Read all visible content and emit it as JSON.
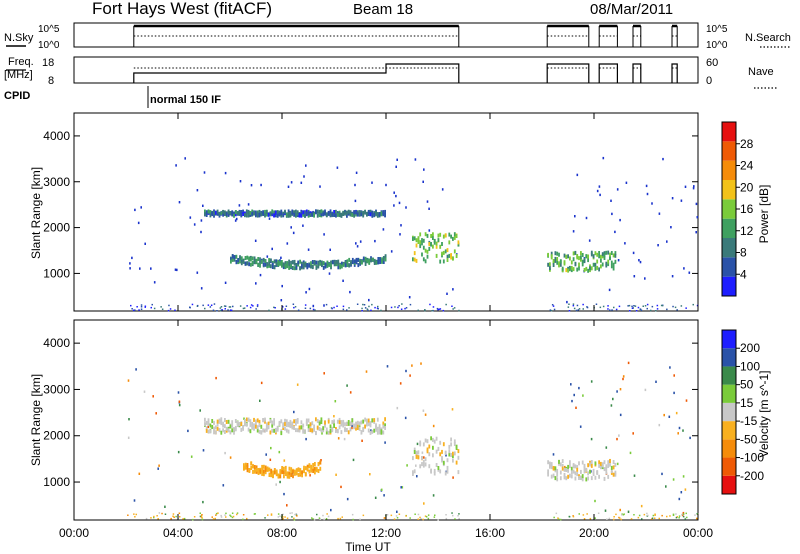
{
  "header": {
    "station": "Fort Hays West (fitACF)",
    "beam": "Beam 18",
    "date": "08/Mar/2011"
  },
  "strip_labels": {
    "nsky": "N.Sky",
    "nsearch": "N.Search",
    "freq_line1": "Freq.",
    "freq_line2": "[MHz]",
    "nave": "Nave",
    "cpid": "CPID",
    "cpid_text": "normal 150 IF",
    "nsky_ticks": [
      "10^5",
      "10^0"
    ],
    "nsearch_ticks": [
      "10^5",
      "10^0"
    ],
    "freq_ticks": [
      "18",
      "8"
    ],
    "nave_ticks": [
      "60",
      "0"
    ]
  },
  "colors": {
    "scatter": "#1a33cc",
    "power_scale": [
      "#1e1eff",
      "#2a52a8",
      "#3a7a7a",
      "#3fa060",
      "#7acb3a",
      "#f2c21a",
      "#f58c0a",
      "#ef5a05",
      "#e61010"
    ],
    "velocity_scale": [
      "#e61010",
      "#ef5a05",
      "#f58c0a",
      "#f8b020",
      "#c8c8c8",
      "#7acb3a",
      "#3a8a4a",
      "#2a52a8",
      "#1e1eff"
    ]
  },
  "chart_data": [
    {
      "type": "heatmap",
      "title": "Power",
      "xlabel": "",
      "ylabel": "Slant Range [km]",
      "xlim": [
        "00:00",
        "24:00"
      ],
      "ylim": [
        180,
        4500
      ],
      "yticks": [
        1000,
        2000,
        3000,
        4000
      ],
      "colorbar": {
        "label": "Power [dB]",
        "ticks": [
          "4",
          "8",
          "12",
          "16",
          "20",
          "24",
          "28"
        ],
        "range": [
          0,
          30
        ]
      },
      "bands": [
        {
          "name": "upper echo band",
          "t_start": 5.0,
          "t_end": 12.0,
          "range_start": 2300,
          "range_end": 2400,
          "power": 6
        },
        {
          "name": "lower echo band",
          "t_start": 6.0,
          "t_end": 12.0,
          "range_start": 1150,
          "range_end": 1300,
          "power": 8
        },
        {
          "name": "post-noon patch",
          "t_start": 13.0,
          "t_end": 14.8,
          "range_start": 1300,
          "range_end": 1900,
          "power": 14
        },
        {
          "name": "evening patch",
          "t_start": 18.2,
          "t_end": 20.8,
          "range_start": 1100,
          "range_end": 1500,
          "power": 12
        }
      ]
    },
    {
      "type": "heatmap",
      "title": "Velocity",
      "xlabel": "Time UT",
      "ylabel": "Slant Range [km]",
      "xlim": [
        "00:00",
        "24:00"
      ],
      "ylim": [
        180,
        4500
      ],
      "xticks": [
        "00:00",
        "04:00",
        "08:00",
        "12:00",
        "16:00",
        "20:00",
        "00:00"
      ],
      "yticks": [
        1000,
        2000,
        3000,
        4000
      ],
      "colorbar": {
        "label": "Velocity [m s^-1]",
        "ticks": [
          "-200",
          "-100",
          "-50",
          "-15",
          "15",
          "50",
          "100",
          "200"
        ]
      },
      "bands": [
        {
          "name": "upper echo band",
          "t_start": 5.0,
          "t_end": 12.0,
          "range_start": 2100,
          "range_end": 2400,
          "velocity": 0
        },
        {
          "name": "lower echo band",
          "t_start": 6.5,
          "t_end": 9.5,
          "range_start": 1150,
          "range_end": 1350,
          "velocity": -40
        },
        {
          "name": "post-noon patch",
          "t_start": 13.0,
          "t_end": 14.8,
          "range_start": 1200,
          "range_end": 2000,
          "velocity": 0
        },
        {
          "name": "evening patch",
          "t_start": 18.2,
          "t_end": 20.8,
          "range_start": 1100,
          "range_end": 1500,
          "velocity": 0
        }
      ]
    }
  ]
}
